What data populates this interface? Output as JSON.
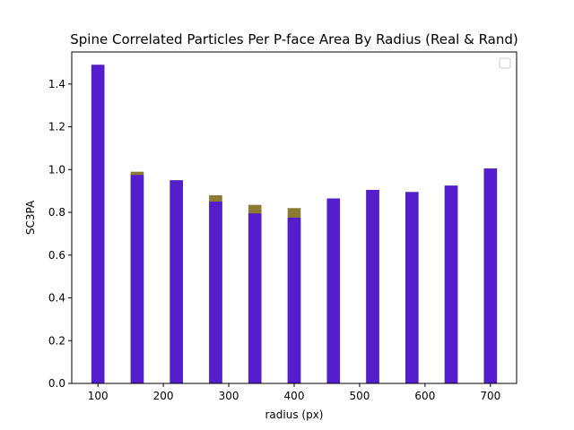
{
  "chart_data": {
    "type": "bar",
    "title": "Spine Correlated Particles Per P-face Area By Radius (Real & Rand)",
    "xlabel": "radius (px)",
    "ylabel": "SC3PA",
    "xlim": [
      60,
      740
    ],
    "ylim": [
      0,
      1.55
    ],
    "x_ticks": [
      "100",
      "200",
      "300",
      "400",
      "500",
      "600",
      "700"
    ],
    "y_ticks": [
      "0.0",
      "0.2",
      "0.4",
      "0.6",
      "0.8",
      "1.0",
      "1.2",
      "1.4"
    ],
    "legend_placement": "top-right",
    "grid": false,
    "bar_width": 20,
    "x": [
      100,
      160,
      220,
      280,
      340,
      400,
      460,
      520,
      580,
      640,
      700
    ],
    "series": [
      {
        "values": [
          1.49,
          0.99,
          0.95,
          0.88,
          0.835,
          0.82,
          0.865,
          0.905,
          0.895,
          0.925,
          1.005
        ],
        "color": "#8b7a33"
      },
      {
        "values": [
          1.49,
          0.975,
          0.95,
          0.85,
          0.795,
          0.775,
          0.865,
          0.905,
          0.895,
          0.925,
          1.005
        ],
        "color": "#541ecc"
      }
    ]
  }
}
